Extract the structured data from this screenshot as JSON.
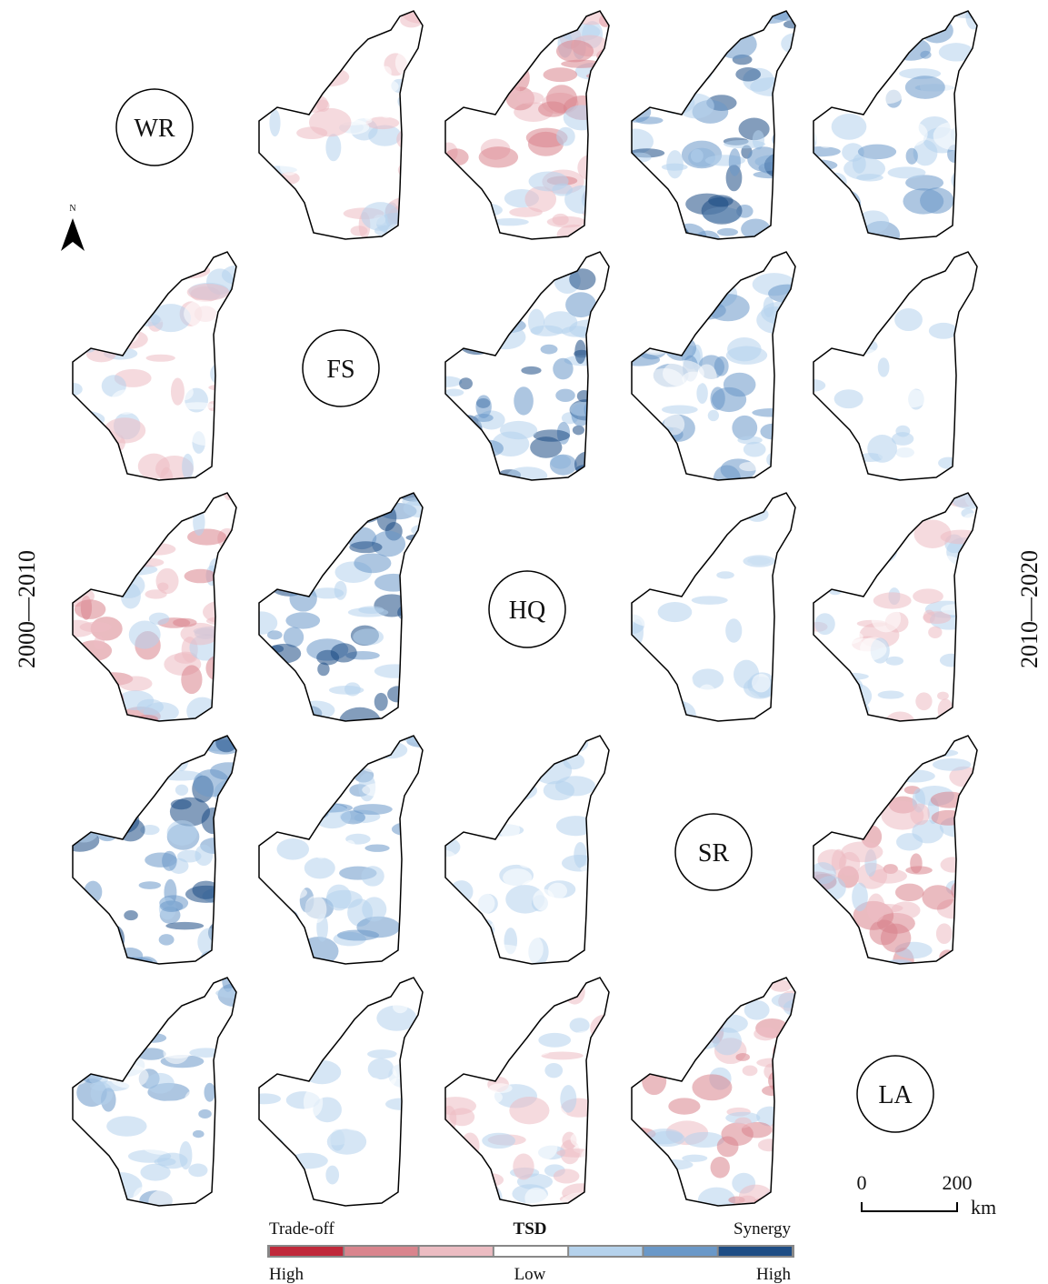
{
  "labels": [
    "WR",
    "FS",
    "HQ",
    "SR",
    "LA"
  ],
  "north": "N",
  "left_period": "2000—2010",
  "right_period": "2010—2020",
  "scale": {
    "ticks": [
      "0",
      "200"
    ],
    "unit": "km"
  },
  "legend": {
    "left": "Trade-off",
    "title": "TSD",
    "right": "Synergy",
    "high_left": "High",
    "low": "Low",
    "high_right": "High",
    "colors": [
      "#c0283a",
      "#d9848d",
      "#ecbcc2",
      "#ffffff",
      "#b5d2ec",
      "#6a98c8",
      "#1e4d85"
    ]
  }
}
